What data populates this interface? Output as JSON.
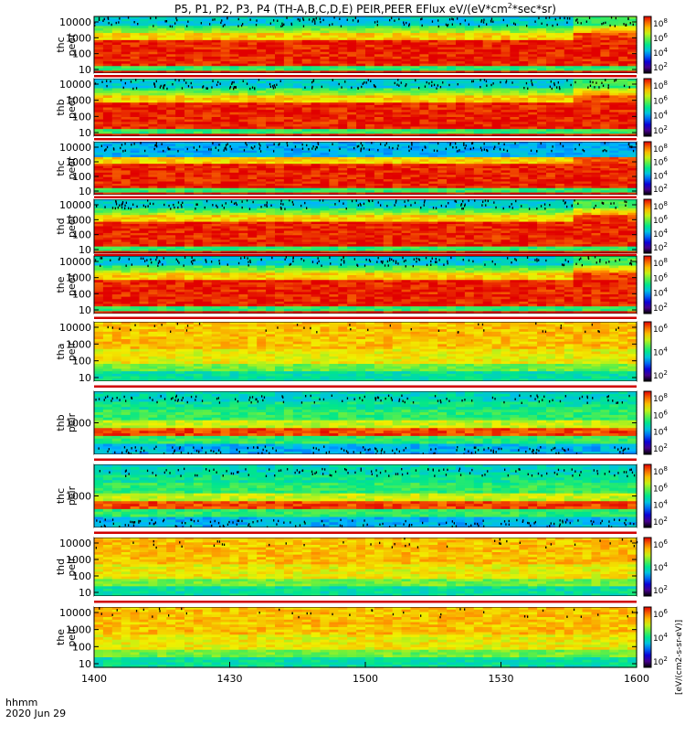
{
  "title": "P5, P1, P2, P3, P4 (TH-A,B,C,D,E) PEIR,PEER EFlux eV/(eV*cm",
  "title_sup": "2",
  "title_tail": "*sec*sr)",
  "time_label": "hhmm",
  "date_label": "2020 Jun 29",
  "colorbar_unit": "[eV/(cm2-s-sr-eV)]",
  "chart_data": {
    "type": "heatmap",
    "x_ticks": [
      "1400",
      "1430",
      "1500",
      "1530",
      "1600"
    ],
    "x_range": [
      "14:00",
      "16:00"
    ],
    "panels": [
      {
        "label": [
          "thc",
          "peer"
        ],
        "y_ticks": [
          "10000",
          "1000",
          "100",
          "10"
        ],
        "cbar_ticks": [
          "10",
          "10",
          "10",
          "10"
        ],
        "cbar_exp": [
          "8",
          "6",
          "4",
          "2"
        ],
        "kind": "peer",
        "variant": 0
      },
      {
        "label": [
          "thb",
          "peer"
        ],
        "y_ticks": [
          "10000",
          "1000",
          "100",
          "10"
        ],
        "cbar_ticks": [
          "10",
          "10",
          "10",
          "10"
        ],
        "cbar_exp": [
          "8",
          "6",
          "4",
          "2"
        ],
        "kind": "peer",
        "variant": 1
      },
      {
        "label": [
          "thc",
          "peer"
        ],
        "y_ticks": [
          "10000",
          "1000",
          "100",
          "10"
        ],
        "cbar_ticks": [
          "10",
          "10",
          "10",
          "10"
        ],
        "cbar_exp": [
          "8",
          "6",
          "4",
          "2"
        ],
        "kind": "peer",
        "variant": 2
      },
      {
        "label": [
          "thd",
          "peer"
        ],
        "y_ticks": [
          "10000",
          "1000",
          "100",
          "10"
        ],
        "cbar_ticks": [
          "10",
          "10",
          "10",
          "10"
        ],
        "cbar_exp": [
          "8",
          "6",
          "4",
          "2"
        ],
        "kind": "peer",
        "variant": 3
      },
      {
        "label": [
          "the",
          "peer"
        ],
        "y_ticks": [
          "10000",
          "1000",
          "100",
          "10"
        ],
        "cbar_ticks": [
          "10",
          "10",
          "10",
          "10"
        ],
        "cbar_exp": [
          "8",
          "6",
          "4",
          "2"
        ],
        "kind": "peer",
        "variant": 4
      },
      {
        "label": [
          "tha",
          "peir"
        ],
        "y_ticks": [
          "10000",
          "1000",
          "100",
          "10"
        ],
        "cbar_ticks": [
          "10",
          "10",
          "10"
        ],
        "cbar_exp": [
          "6",
          "4",
          "2"
        ],
        "kind": "peir",
        "variant": 0
      },
      {
        "label": [
          "thb",
          "peir"
        ],
        "y_ticks": [
          "1000"
        ],
        "cbar_ticks": [
          "10",
          "10",
          "10",
          "10"
        ],
        "cbar_exp": [
          "8",
          "6",
          "4",
          "2"
        ],
        "kind": "peir_band",
        "variant": 1
      },
      {
        "label": [
          "thc",
          "peir"
        ],
        "y_ticks": [
          "1000"
        ],
        "cbar_ticks": [
          "10",
          "10",
          "10",
          "10"
        ],
        "cbar_exp": [
          "8",
          "6",
          "4",
          "2"
        ],
        "kind": "peir_band",
        "variant": 2
      },
      {
        "label": [
          "thd",
          "peir"
        ],
        "y_ticks": [
          "10000",
          "1000",
          "100",
          "10"
        ],
        "cbar_ticks": [
          "10",
          "10",
          "10"
        ],
        "cbar_exp": [
          "6",
          "4",
          "2"
        ],
        "kind": "peir",
        "variant": 3
      },
      {
        "label": [
          "the",
          "peir"
        ],
        "y_ticks": [
          "10000",
          "1000",
          "100",
          "10"
        ],
        "cbar_ticks": [
          "10",
          "10",
          "10"
        ],
        "cbar_exp": [
          "6",
          "4",
          "2"
        ],
        "kind": "peir",
        "variant": 4
      }
    ]
  }
}
